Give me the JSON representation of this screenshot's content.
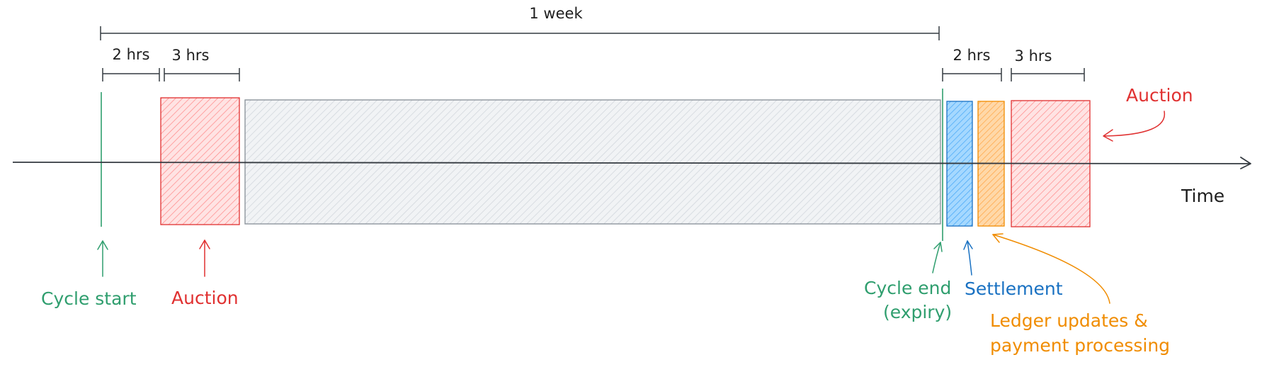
{
  "dimensions": {
    "week": "1 week",
    "start_two_hrs": "2 hrs",
    "start_three_hrs": "3 hrs",
    "end_two_hrs": "2 hrs",
    "end_three_hrs": "3 hrs"
  },
  "labels": {
    "cycle_start": "Cycle start",
    "auction_start": "Auction",
    "cycle_end_line1": "Cycle end",
    "cycle_end_line2": "(expiry)",
    "settlement": "Settlement",
    "ledger_line1": "Ledger updates &",
    "ledger_line2": "payment processing",
    "auction_end": "Auction",
    "time_axis": "Time"
  },
  "colors": {
    "green": "#2f9e6e",
    "red": "#e03131",
    "blue": "#1971c2",
    "orange": "#f08c00",
    "gray": "#868e96",
    "ink": "#1e1e1e"
  }
}
